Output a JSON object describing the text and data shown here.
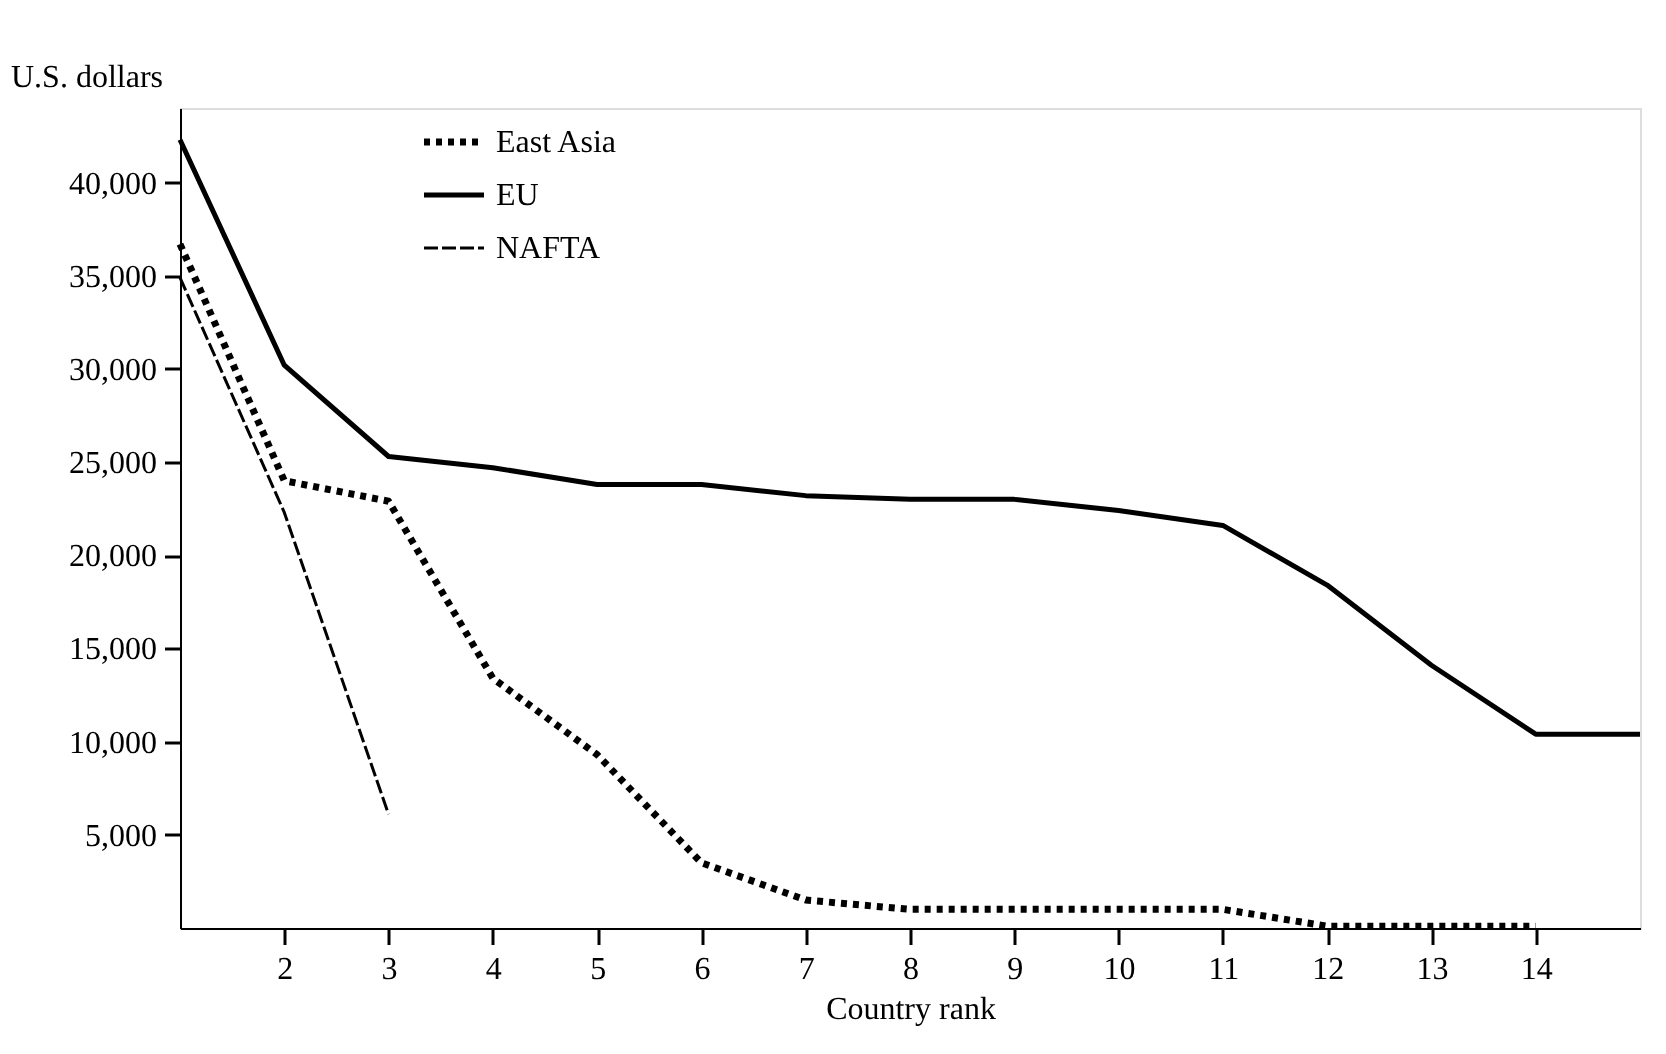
{
  "chart_data": {
    "type": "line",
    "xlabel": "Country rank",
    "ylabel": "U.S. dollars",
    "xlim": [
      1,
      15
    ],
    "xticks": [
      2,
      3,
      4,
      5,
      6,
      7,
      8,
      9,
      10,
      11,
      12,
      13,
      14
    ],
    "ylim": [
      0,
      44000
    ],
    "yticks": [
      {
        "value": 5000,
        "label": "5,000"
      },
      {
        "value": 10000,
        "label": "10,000"
      },
      {
        "value": 15000,
        "label": "15,000"
      },
      {
        "value": 20000,
        "label": "20,000"
      },
      {
        "value": 25000,
        "label": "25,000"
      },
      {
        "value": 30000,
        "label": "30,000"
      },
      {
        "value": 35000,
        "label": "35,000"
      },
      {
        "value": 40000,
        "label": "40,000"
      }
    ],
    "grid": false,
    "legend": "top left",
    "marker": "none",
    "series": [
      {
        "name": "East Asia",
        "color": "#000000",
        "line_style": "dotted",
        "x": [
          1,
          2,
          3,
          4,
          5,
          6,
          7,
          8,
          9,
          10,
          11,
          12,
          13,
          14
        ],
        "values": [
          36700,
          24000,
          22900,
          13400,
          9300,
          3500,
          1500,
          1000,
          1000,
          1000,
          1000,
          100,
          100,
          100
        ]
      },
      {
        "name": "EU",
        "color": "#000000",
        "line_style": "solid",
        "x": [
          1,
          2,
          3,
          4,
          5,
          6,
          7,
          8,
          9,
          10,
          11,
          12,
          13,
          14,
          15
        ],
        "values": [
          42300,
          30200,
          25300,
          24700,
          23800,
          23800,
          23200,
          23000,
          23000,
          22400,
          21600,
          18400,
          14100,
          10400,
          10400
        ]
      },
      {
        "name": "NAFTA",
        "color": "#000000",
        "line_style": "dashed",
        "x": [
          1,
          2,
          3
        ],
        "values": [
          34900,
          22300,
          6100
        ]
      }
    ]
  }
}
